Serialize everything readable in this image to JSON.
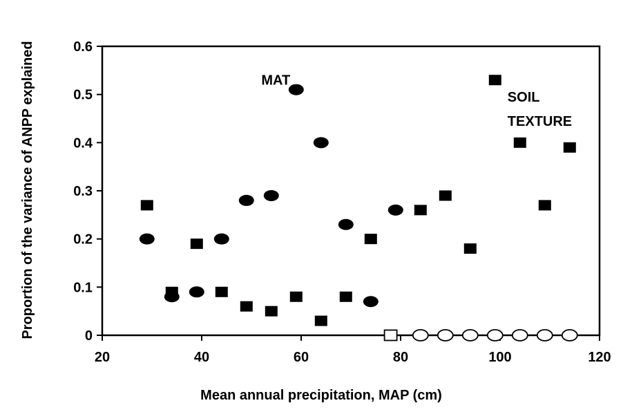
{
  "chart_data": {
    "type": "scatter",
    "title": "",
    "xlabel": "Mean annual precipitation, MAP (cm)",
    "ylabel": "Proportion of the variance of ANPP explained",
    "xlim": [
      20,
      120
    ],
    "ylim": [
      0,
      0.6
    ],
    "xticks": [
      "20",
      "40",
      "60",
      "80",
      "100",
      "120"
    ],
    "yticks": [
      "0",
      "0.1",
      "0.2",
      "0.3",
      "0.4",
      "0.5",
      "0.6"
    ],
    "grid": false,
    "legend": "none",
    "annotations": [
      {
        "text": "MAT",
        "x": 52,
        "y": 0.52
      },
      {
        "text": "SOIL",
        "x": 101.5,
        "y": 0.485
      },
      {
        "text": "TEXTURE",
        "x": 101.5,
        "y": 0.435
      }
    ],
    "series": [
      {
        "marker": "filled-circle",
        "points": [
          {
            "x": 29,
            "y": 0.2
          },
          {
            "x": 34,
            "y": 0.08
          },
          {
            "x": 39,
            "y": 0.09
          },
          {
            "x": 44,
            "y": 0.2
          },
          {
            "x": 49,
            "y": 0.28
          },
          {
            "x": 54,
            "y": 0.29
          },
          {
            "x": 59,
            "y": 0.51
          },
          {
            "x": 64,
            "y": 0.4
          },
          {
            "x": 69,
            "y": 0.23
          },
          {
            "x": 74,
            "y": 0.07
          },
          {
            "x": 79,
            "y": 0.26
          }
        ]
      },
      {
        "marker": "filled-square",
        "points": [
          {
            "x": 29,
            "y": 0.27
          },
          {
            "x": 34,
            "y": 0.09
          },
          {
            "x": 39,
            "y": 0.19
          },
          {
            "x": 44,
            "y": 0.09
          },
          {
            "x": 49,
            "y": 0.06
          },
          {
            "x": 54,
            "y": 0.05
          },
          {
            "x": 59,
            "y": 0.08
          },
          {
            "x": 64,
            "y": 0.03
          },
          {
            "x": 69,
            "y": 0.08
          },
          {
            "x": 74,
            "y": 0.2
          },
          {
            "x": 84,
            "y": 0.26
          },
          {
            "x": 89,
            "y": 0.29
          },
          {
            "x": 94,
            "y": 0.18
          },
          {
            "x": 99,
            "y": 0.53
          },
          {
            "x": 104,
            "y": 0.4
          },
          {
            "x": 109,
            "y": 0.27
          },
          {
            "x": 114,
            "y": 0.39
          }
        ]
      },
      {
        "marker": "open-square",
        "points": [
          {
            "x": 78,
            "y": 0
          }
        ]
      },
      {
        "marker": "open-circle",
        "points": [
          {
            "x": 84,
            "y": 0
          },
          {
            "x": 89,
            "y": 0
          },
          {
            "x": 94,
            "y": 0
          },
          {
            "x": 99,
            "y": 0
          },
          {
            "x": 104,
            "y": 0
          },
          {
            "x": 109,
            "y": 0
          },
          {
            "x": 114,
            "y": 0
          }
        ]
      }
    ]
  }
}
